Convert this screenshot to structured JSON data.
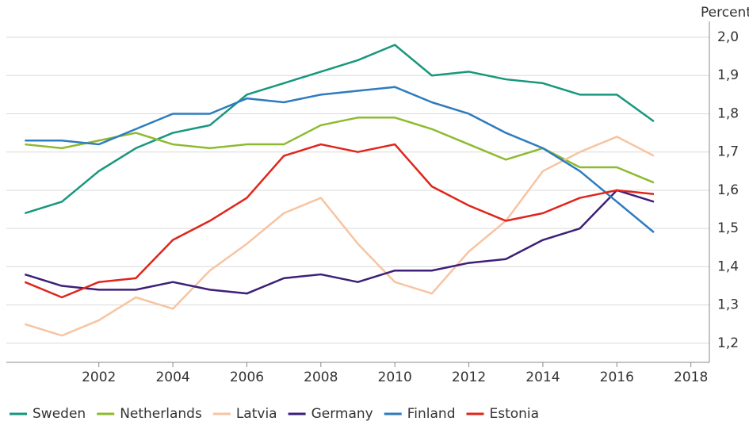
{
  "chart_data": {
    "type": "line",
    "ylabel": "Percent",
    "x": [
      2000,
      2001,
      2002,
      2003,
      2004,
      2005,
      2006,
      2007,
      2008,
      2009,
      2010,
      2011,
      2012,
      2013,
      2014,
      2015,
      2016,
      2017
    ],
    "xlim": [
      1999.5,
      2018.5
    ],
    "xticks": [
      2002,
      2004,
      2006,
      2008,
      2010,
      2012,
      2014,
      2016,
      2018
    ],
    "ylim": [
      1.15,
      2.0
    ],
    "yticks": [
      {
        "value": 1.2,
        "label": "1,2"
      },
      {
        "value": 1.3,
        "label": "1,3"
      },
      {
        "value": 1.4,
        "label": "1,4"
      },
      {
        "value": 1.5,
        "label": "1,5"
      },
      {
        "value": 1.6,
        "label": "1,6"
      },
      {
        "value": 1.7,
        "label": "1,7"
      },
      {
        "value": 1.8,
        "label": "1,8"
      },
      {
        "value": 1.9,
        "label": "1,9"
      },
      {
        "value": 2.0,
        "label": "2,0"
      }
    ],
    "grid": true,
    "legend": "bottom",
    "series": [
      {
        "name": "Sweden",
        "color": "#17977d",
        "values": [
          1.54,
          1.57,
          1.65,
          1.71,
          1.75,
          1.77,
          1.85,
          1.88,
          1.91,
          1.94,
          1.98,
          1.9,
          1.91,
          1.89,
          1.88,
          1.85,
          1.85,
          1.78
        ]
      },
      {
        "name": "Netherlands",
        "color": "#8dbb2e",
        "values": [
          1.72,
          1.71,
          1.73,
          1.75,
          1.72,
          1.71,
          1.72,
          1.72,
          1.77,
          1.79,
          1.79,
          1.76,
          1.72,
          1.68,
          1.71,
          1.66,
          1.66,
          1.62
        ]
      },
      {
        "name": "Latvia",
        "color": "#f7c4a2",
        "values": [
          1.25,
          1.22,
          1.26,
          1.32,
          1.29,
          1.39,
          1.46,
          1.54,
          1.58,
          1.46,
          1.36,
          1.33,
          1.44,
          1.52,
          1.65,
          1.7,
          1.74,
          1.69
        ]
      },
      {
        "name": "Germany",
        "color": "#3d1f78",
        "values": [
          1.38,
          1.35,
          1.34,
          1.34,
          1.36,
          1.34,
          1.33,
          1.37,
          1.38,
          1.36,
          1.39,
          1.39,
          1.41,
          1.42,
          1.47,
          1.5,
          1.6,
          1.57
        ]
      },
      {
        "name": "Finland",
        "color": "#2e7bbf",
        "values": [
          1.73,
          1.73,
          1.72,
          1.76,
          1.8,
          1.8,
          1.84,
          1.83,
          1.85,
          1.86,
          1.87,
          1.83,
          1.8,
          1.75,
          1.71,
          1.65,
          1.57,
          1.49
        ]
      },
      {
        "name": "Estonia",
        "color": "#e0251b",
        "values": [
          1.36,
          1.32,
          1.36,
          1.37,
          1.47,
          1.52,
          1.58,
          1.69,
          1.72,
          1.7,
          1.72,
          1.61,
          1.56,
          1.52,
          1.54,
          1.58,
          1.6,
          1.59
        ]
      }
    ]
  }
}
